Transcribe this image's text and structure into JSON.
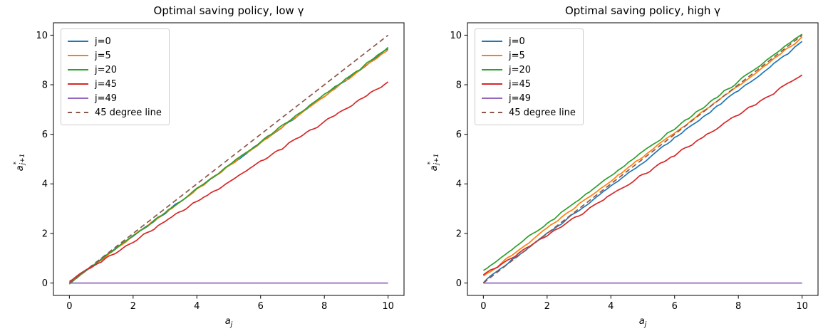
{
  "figure": {
    "background": "#ffffff",
    "axis_color": "#000000",
    "legend_border_color": "#cccccc"
  },
  "chart_data": [
    {
      "type": "line",
      "title": "Optimal saving policy, low γ",
      "xlabel": {
        "base": "a",
        "sub": "j"
      },
      "ylabel": {
        "base": "a",
        "sup": "*",
        "sub": "j+1"
      },
      "xlim": [
        -0.5,
        10.5
      ],
      "ylim": [
        -0.5,
        10.5
      ],
      "xticks": [
        0,
        2,
        4,
        6,
        8,
        10
      ],
      "yticks": [
        0,
        2,
        4,
        6,
        8,
        10
      ],
      "grid": false,
      "legend_position": "upper left",
      "series": [
        {
          "name": "j=0",
          "color": "#1f77b4",
          "style": "solid",
          "points": [
            [
              0,
              0
            ],
            [
              10,
              9.45
            ]
          ],
          "noise": 0.05
        },
        {
          "name": "j=5",
          "color": "#ff7f0e",
          "style": "solid",
          "points": [
            [
              0,
              0
            ],
            [
              10,
              9.42
            ]
          ],
          "noise": 0.05
        },
        {
          "name": "j=20",
          "color": "#2ca02c",
          "style": "solid",
          "points": [
            [
              0,
              0
            ],
            [
              10,
              9.48
            ]
          ],
          "noise": 0.05
        },
        {
          "name": "j=45",
          "color": "#d62728",
          "style": "solid",
          "points": [
            [
              0,
              0.08
            ],
            [
              10,
              8.1
            ]
          ],
          "noise": 0.06
        },
        {
          "name": "j=49",
          "color": "#9467bd",
          "style": "solid",
          "points": [
            [
              0,
              0
            ],
            [
              10,
              0
            ]
          ],
          "noise": 0
        },
        {
          "name": "45 degree line",
          "color": "#8c564b",
          "style": "dashed",
          "points": [
            [
              0,
              0
            ],
            [
              10,
              10
            ]
          ],
          "noise": 0
        }
      ]
    },
    {
      "type": "line",
      "title": "Optimal saving policy, high γ",
      "xlabel": {
        "base": "a",
        "sub": "j"
      },
      "ylabel": {
        "base": "a",
        "sup": "*",
        "sub": "j+1"
      },
      "xlim": [
        -0.5,
        10.5
      ],
      "ylim": [
        -0.5,
        10.5
      ],
      "xticks": [
        0,
        2,
        4,
        6,
        8,
        10
      ],
      "yticks": [
        0,
        2,
        4,
        6,
        8,
        10
      ],
      "grid": false,
      "legend_position": "upper left",
      "series": [
        {
          "name": "j=0",
          "color": "#1f77b4",
          "style": "solid",
          "points": [
            [
              0,
              0.05
            ],
            [
              10,
              9.7
            ]
          ],
          "noise": 0.05
        },
        {
          "name": "j=5",
          "color": "#ff7f0e",
          "style": "solid",
          "points": [
            [
              0,
              0.27
            ],
            [
              10,
              9.9
            ]
          ],
          "noise": 0.05
        },
        {
          "name": "j=20",
          "color": "#2ca02c",
          "style": "solid",
          "points": [
            [
              0,
              0.5
            ],
            [
              10,
              10.05
            ]
          ],
          "noise": 0.05
        },
        {
          "name": "j=45",
          "color": "#d62728",
          "style": "solid",
          "points": [
            [
              0,
              0.3
            ],
            [
              10,
              8.4
            ]
          ],
          "noise": 0.06
        },
        {
          "name": "j=49",
          "color": "#9467bd",
          "style": "solid",
          "points": [
            [
              0,
              0
            ],
            [
              10,
              0
            ]
          ],
          "noise": 0
        },
        {
          "name": "45 degree line",
          "color": "#8c564b",
          "style": "dashed",
          "points": [
            [
              0,
              0
            ],
            [
              10,
              10
            ]
          ],
          "noise": 0
        }
      ]
    }
  ]
}
